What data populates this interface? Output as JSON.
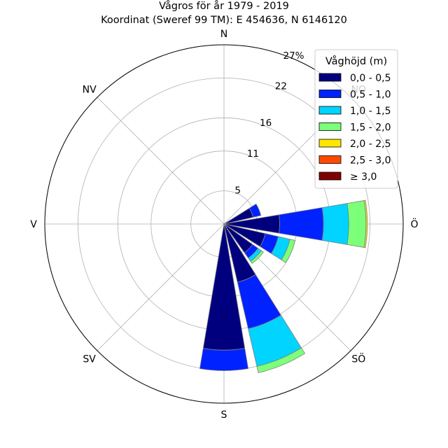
{
  "chart_data": {
    "type": "windrose",
    "title": "Vågros för år 1979 - 2019",
    "subtitle": "Koordinat (Sweref 99 TM): E 454636, N 6146120",
    "directions": [
      "N",
      "NO",
      "Ö",
      "SÖ",
      "S",
      "SV",
      "V",
      "NV"
    ],
    "radial_ticks": [
      "5",
      "11",
      "16",
      "22",
      "27%"
    ],
    "radial_tick_values": [
      5,
      11,
      16,
      22,
      27
    ],
    "rmax": 27,
    "legend_title": "Våghöjd (m)",
    "legend_placement": "top-right",
    "bins": [
      {
        "label": "0,0 - 0,5",
        "color": "#00007f"
      },
      {
        "label": "0,5 - 1,0",
        "color": "#0022ff"
      },
      {
        "label": "1,0 - 1,5",
        "color": "#00d4ff"
      },
      {
        "label": "1,5 - 2,0",
        "color": "#7cff79"
      },
      {
        "label": "2,0 - 2,5",
        "color": "#ffe600"
      },
      {
        "label": "2,5 - 3,0",
        "color": "#ff4a00"
      },
      {
        "label": "≥ 3,0",
        "color": "#7f0000"
      }
    ],
    "sectors": [
      {
        "direction_deg": 0,
        "values": [
          0,
          0,
          0,
          0,
          0,
          0,
          0
        ]
      },
      {
        "direction_deg": 22.5,
        "values": [
          0,
          0,
          0,
          0,
          0,
          0,
          0
        ]
      },
      {
        "direction_deg": 45,
        "values": [
          0,
          0,
          0,
          0,
          0,
          0,
          0
        ]
      },
      {
        "direction_deg": 67.5,
        "values": [
          4.5,
          1.2,
          0,
          0,
          0,
          0,
          0
        ]
      },
      {
        "direction_deg": 90,
        "values": [
          8.4,
          6.6,
          3.8,
          2.6,
          0.2,
          0,
          0
        ]
      },
      {
        "direction_deg": 112.5,
        "values": [
          6.4,
          2.0,
          1.8,
          0.8,
          0,
          0,
          0
        ]
      },
      {
        "direction_deg": 135,
        "values": [
          5.3,
          1.0,
          0.6,
          0.4,
          0,
          0,
          0
        ]
      },
      {
        "direction_deg": 157.5,
        "values": [
          9.0,
          7.2,
          5.8,
          1.0,
          0,
          0,
          0
        ]
      },
      {
        "direction_deg": 180,
        "values": [
          19.0,
          3.1,
          0,
          0,
          0,
          0,
          0
        ]
      },
      {
        "direction_deg": 202.5,
        "values": [
          0,
          0,
          0,
          0,
          0,
          0,
          0
        ]
      },
      {
        "direction_deg": 225,
        "values": [
          0,
          0,
          0,
          0,
          0,
          0,
          0
        ]
      },
      {
        "direction_deg": 247.5,
        "values": [
          0,
          0,
          0,
          0,
          0,
          0,
          0
        ]
      },
      {
        "direction_deg": 270,
        "values": [
          0,
          0,
          0,
          0,
          0,
          0,
          0
        ]
      },
      {
        "direction_deg": 292.5,
        "values": [
          0,
          0,
          0,
          0,
          0,
          0,
          0
        ]
      },
      {
        "direction_deg": 315,
        "values": [
          0,
          0,
          0,
          0,
          0,
          0,
          0
        ]
      },
      {
        "direction_deg": 337.5,
        "values": [
          0,
          0,
          0,
          0,
          0,
          0,
          0
        ]
      }
    ],
    "grid": true
  }
}
